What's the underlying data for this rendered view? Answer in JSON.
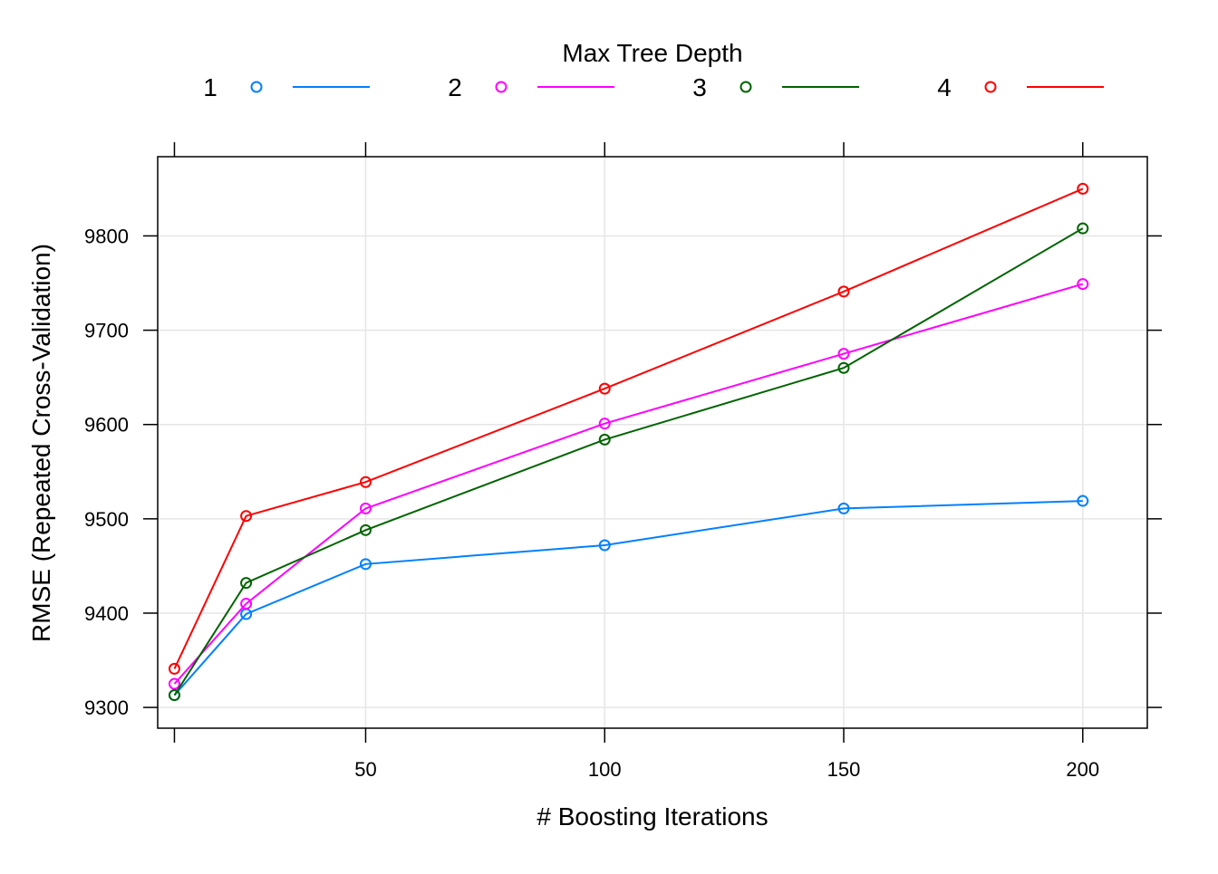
{
  "chart_data": {
    "type": "line",
    "legend": {
      "title": "Max Tree Depth",
      "placement": "top"
    },
    "xlabel": "# Boosting Iterations",
    "ylabel": "RMSE (Repeated Cross-Validation)",
    "xlim": [
      6.5,
      213.5
    ],
    "ylim": [
      9278,
      9884
    ],
    "x_ticks": [
      50,
      100,
      150,
      200
    ],
    "y_ticks": [
      9300,
      9400,
      9500,
      9600,
      9700,
      9800
    ],
    "grid": true,
    "x": [
      10,
      25,
      50,
      100,
      150,
      200
    ],
    "series": [
      {
        "name": "1",
        "color": "#0080ff",
        "values": [
          9313,
          9399,
          9452,
          9472,
          9511,
          9519
        ]
      },
      {
        "name": "2",
        "color": "#ff00ff",
        "values": [
          9325,
          9410,
          9511,
          9601,
          9675,
          9749
        ]
      },
      {
        "name": "3",
        "color": "#006400",
        "values": [
          9313,
          9432,
          9488,
          9584,
          9660,
          9808
        ]
      },
      {
        "name": "4",
        "color": "#ff0000",
        "values": [
          9341,
          9503,
          9539,
          9638,
          9741,
          9850
        ]
      }
    ]
  }
}
